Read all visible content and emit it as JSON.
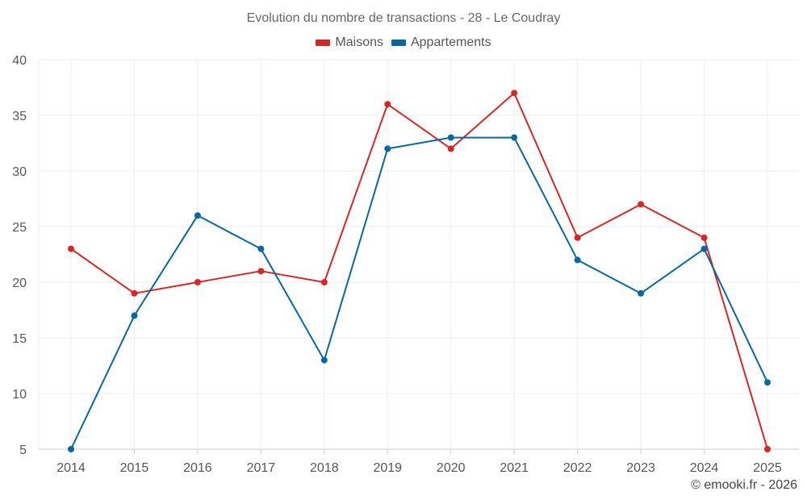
{
  "chart_data": {
    "type": "line",
    "title": "Evolution du nombre de transactions - 28 - Le Coudray",
    "categories": [
      "2014",
      "2015",
      "2016",
      "2017",
      "2018",
      "2019",
      "2020",
      "2021",
      "2022",
      "2023",
      "2024",
      "2025"
    ],
    "series": [
      {
        "name": "Maisons",
        "color": "#d62728",
        "values": [
          23,
          19,
          20,
          21,
          20,
          36,
          32,
          37,
          24,
          27,
          24,
          5
        ]
      },
      {
        "name": "Appartements",
        "color": "#08679c",
        "values": [
          5,
          17,
          26,
          23,
          13,
          32,
          33,
          33,
          22,
          19,
          23,
          11
        ]
      }
    ],
    "ylim": [
      5,
      40
    ],
    "yticks": [
      5,
      10,
      15,
      20,
      25,
      30,
      35,
      40
    ],
    "grid": true,
    "legend_position": "top-center",
    "xlabel": "",
    "ylabel": ""
  },
  "footer": {
    "watermark": "© emooki.fr - 2026"
  }
}
